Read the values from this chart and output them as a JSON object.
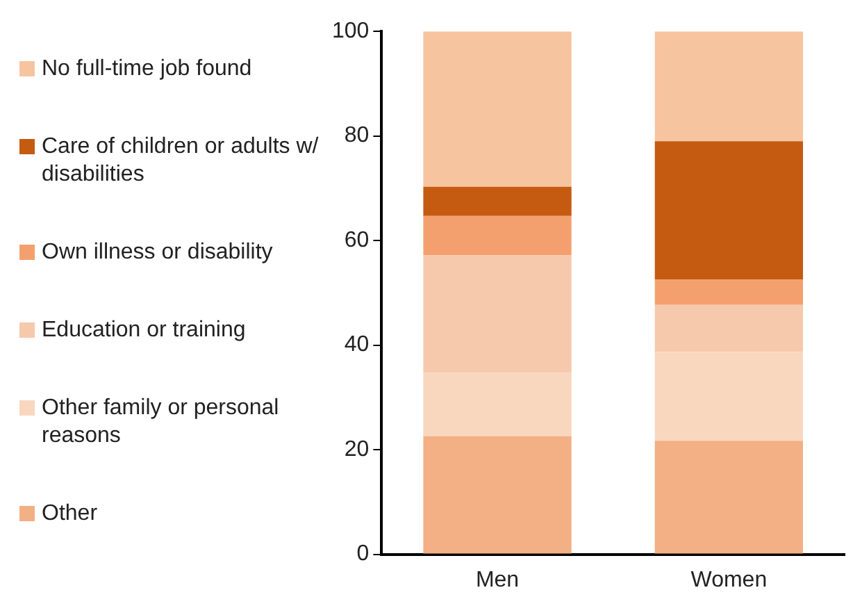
{
  "chart_data": {
    "type": "bar",
    "stacked": true,
    "categories": [
      "Men",
      "Women"
    ],
    "series": [
      {
        "name": "Other",
        "color": "#f2b084",
        "values": [
          22.6,
          21.7
        ]
      },
      {
        "name": "Other family or personal reasons",
        "color": "#f9d7bf",
        "values": [
          12.1,
          17.0
        ]
      },
      {
        "name": "Education or training",
        "color": "#f6c9ad",
        "values": [
          22.5,
          9.0
        ]
      },
      {
        "name": "Own illness or disability",
        "color": "#f4a06e",
        "values": [
          7.5,
          4.8
        ]
      },
      {
        "name": "Care of children or adults w/ disabilities",
        "color": "#c55a11",
        "values": [
          5.6,
          26.5
        ]
      },
      {
        "name": "No full-time job found",
        "color": "#f7c4a0",
        "values": [
          29.7,
          21.0
        ]
      }
    ],
    "ylim": [
      0,
      100
    ],
    "yticks": [
      0,
      20,
      40,
      60,
      80,
      100
    ],
    "grid": false,
    "legend": "left"
  }
}
